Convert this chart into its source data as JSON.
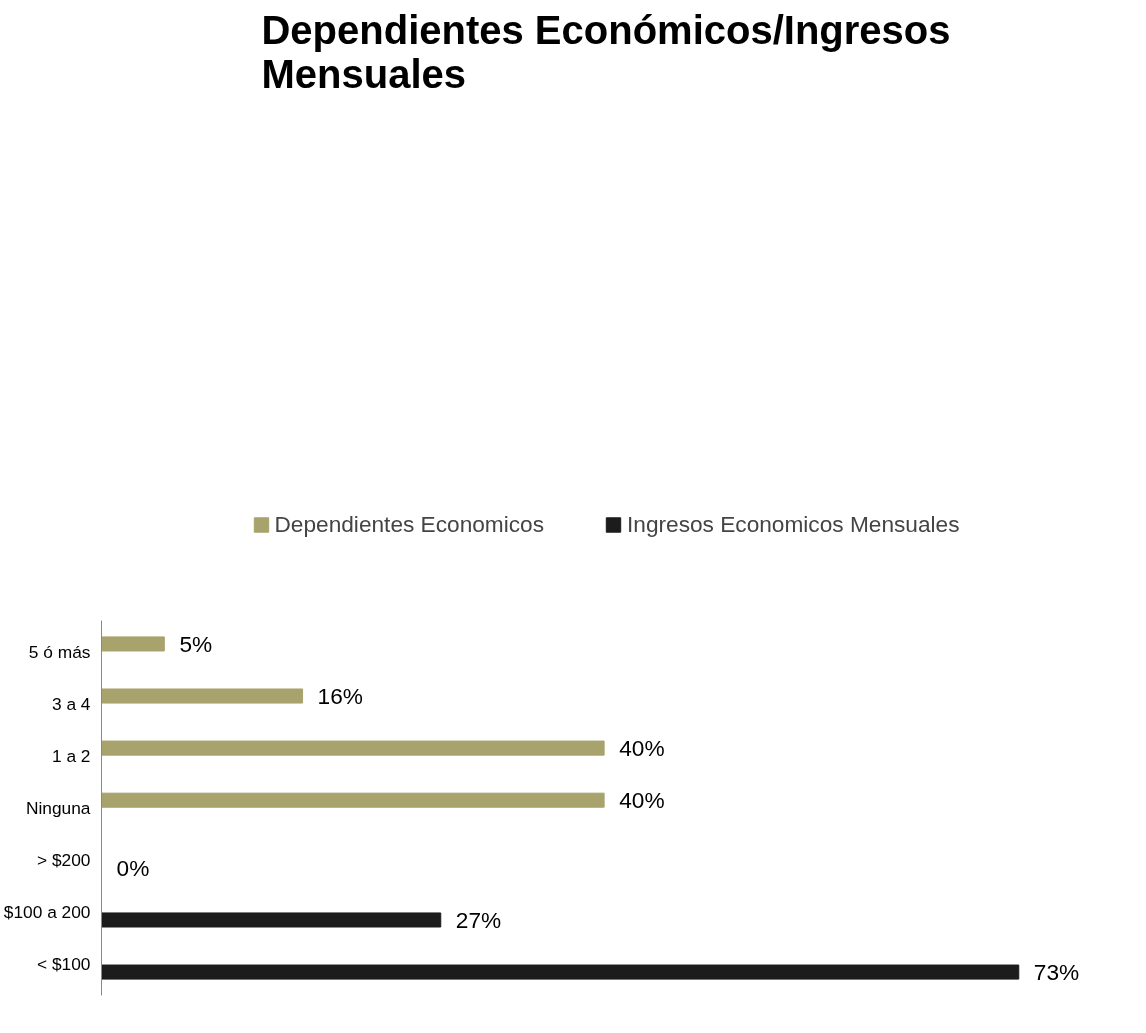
{
  "chart_data": {
    "type": "bar",
    "orientation": "horizontal",
    "title": "Dependientes Económicos/Ingresos Mensuales",
    "categories": [
      "5 ó más",
      "3 a 4",
      "1 a 2",
      "Ninguna",
      "> $200",
      "$100 a 200",
      "< $100"
    ],
    "series": [
      {
        "name": "Dependientes Economicos",
        "color": "#a8a26c",
        "values": [
          5,
          16,
          40,
          40,
          null,
          null,
          null
        ],
        "value_labels": [
          "5%",
          "16%",
          "40%",
          "40%",
          null,
          null,
          null
        ]
      },
      {
        "name": "Ingresos Economicos Mensuales",
        "color": "#1c1c1c",
        "values": [
          null,
          null,
          null,
          null,
          0,
          27,
          73
        ],
        "value_labels": [
          null,
          null,
          null,
          null,
          "0%",
          "27%",
          "73%"
        ]
      }
    ],
    "tick_labels": "y",
    "grid": false,
    "legend": "top"
  }
}
